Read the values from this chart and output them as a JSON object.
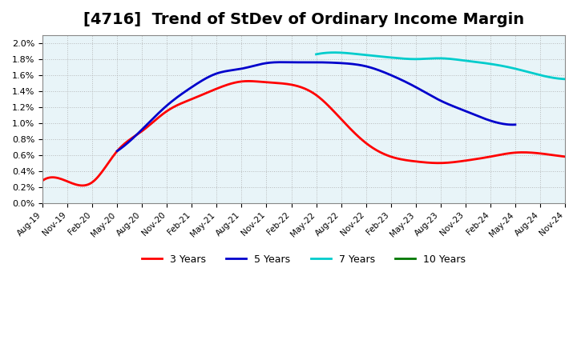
{
  "title": "[4716]  Trend of StDev of Ordinary Income Margin",
  "title_fontsize": 14,
  "background_color": "#ffffff",
  "plot_bg_color": "#ffffff",
  "grid_color": "#aaaaaa",
  "x_labels": [
    "Aug-19",
    "Nov-19",
    "Feb-20",
    "May-20",
    "Aug-20",
    "Nov-20",
    "Feb-21",
    "May-21",
    "Aug-21",
    "Nov-21",
    "Feb-22",
    "May-22",
    "Aug-22",
    "Nov-22",
    "Feb-23",
    "May-23",
    "Aug-23",
    "Nov-23",
    "Feb-24",
    "May-24",
    "Aug-24",
    "Nov-24"
  ],
  "ylim": [
    0.0,
    0.021
  ],
  "yticks": [
    0.0,
    0.002,
    0.004,
    0.006,
    0.008,
    0.01,
    0.012,
    0.014,
    0.016,
    0.018,
    0.02
  ],
  "series": {
    "3 Years": {
      "color": "#ff0000",
      "values": [
        0.0028,
        0.0027,
        0.0026,
        0.0064,
        0.0082,
        0.01,
        0.012,
        0.0138,
        0.0152,
        0.0151,
        0.0148,
        0.014,
        0.012,
        0.009,
        0.006,
        0.0055,
        0.005,
        0.0052,
        0.0058,
        0.0063,
        0.0062,
        0.0058
      ]
    },
    "5 Years": {
      "color": "#0000cc",
      "values": [
        null,
        null,
        null,
        null,
        null,
        null,
        null,
        null,
        null,
        null,
        null,
        null,
        null,
        null,
        null,
        null,
        null,
        null,
        null,
        null,
        null,
        null
      ]
    },
    "7 Years": {
      "color": "#00cccc",
      "values": [
        null,
        null,
        null,
        null,
        null,
        null,
        null,
        null,
        null,
        null,
        null,
        null,
        null,
        null,
        null,
        null,
        null,
        null,
        null,
        null,
        null,
        null
      ]
    },
    "10 Years": {
      "color": "#006600",
      "values": [
        null,
        null,
        null,
        null,
        null,
        null,
        null,
        null,
        null,
        null,
        null,
        null,
        null,
        null,
        null,
        null,
        null,
        null,
        null,
        null,
        null,
        null
      ]
    }
  },
  "legend_labels": [
    "3 Years",
    "5 Years",
    "7 Years",
    "10 Years"
  ],
  "legend_colors": [
    "#ff0000",
    "#0000cc",
    "#00cccc",
    "#006600"
  ]
}
